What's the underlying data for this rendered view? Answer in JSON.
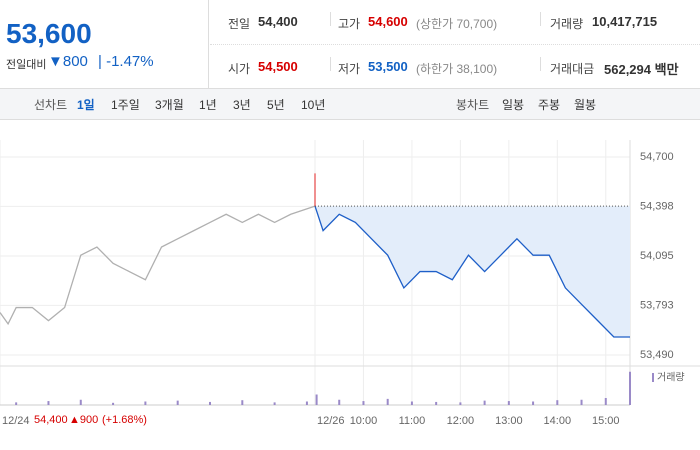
{
  "header": {
    "price": "53,600",
    "change_label": "전일대비",
    "change": "800",
    "change_pct": "-1.47%",
    "stats": [
      {
        "label": "전일",
        "value": "54,400"
      },
      {
        "label": "고가",
        "value": "54,600",
        "note": "(상한가 70,700)"
      },
      {
        "label": "거래량",
        "value": "10,417,715"
      },
      {
        "label": "시가",
        "value": "54,500"
      },
      {
        "label": "저가",
        "value": "53,500",
        "note": "(하한가 38,100)"
      },
      {
        "label": "거래대금",
        "value": "562,294 백만"
      }
    ]
  },
  "tabs": {
    "line_label": "선차트",
    "line": [
      "1일",
      "1주일",
      "3개월",
      "1년",
      "3년",
      "5년",
      "10년"
    ],
    "candle_label": "봉차트",
    "candle": [
      "일봉",
      "주봉",
      "월봉"
    ]
  },
  "chart_data": {
    "type": "line",
    "xlim": [
      0,
      780
    ],
    "ylim": [
      53490,
      54700
    ],
    "yticks": [
      {
        "value": 53490,
        "label": "53,490"
      },
      {
        "value": 53793,
        "label": "53,793"
      },
      {
        "value": 54095,
        "label": "54,095"
      },
      {
        "value": 54398,
        "label": "54,398"
      },
      {
        "value": 54700,
        "label": "54,700"
      }
    ],
    "xticks": [
      {
        "value": 0,
        "label": "12/24"
      },
      {
        "value": 390,
        "label": "12/26"
      },
      {
        "value": 450,
        "label": "10:00"
      },
      {
        "value": 510,
        "label": "11:00"
      },
      {
        "value": 570,
        "label": "12:00"
      },
      {
        "value": 630,
        "label": "13:00"
      },
      {
        "value": 690,
        "label": "14:00"
      },
      {
        "value": 750,
        "label": "15:00"
      }
    ],
    "prev_close": 54400,
    "open_high": 54600,
    "series": [
      {
        "color": "#b0b0b0",
        "x": [
          0,
          10,
          20,
          40,
          60,
          80,
          100,
          120,
          140,
          160,
          180,
          200,
          220,
          240,
          260,
          280,
          300,
          320,
          340,
          360,
          390
        ],
        "values": [
          53750,
          53680,
          53780,
          53780,
          53700,
          53780,
          54100,
          54150,
          54050,
          54000,
          53950,
          54150,
          54200,
          54250,
          54300,
          54350,
          54300,
          54350,
          54300,
          54350,
          54400
        ]
      },
      {
        "color": "#1e5fc8",
        "fill": "#e3edfa",
        "x": [
          390,
          400,
          420,
          440,
          460,
          480,
          500,
          520,
          540,
          560,
          580,
          600,
          620,
          640,
          660,
          680,
          700,
          720,
          740,
          760,
          780
        ],
        "values": [
          54400,
          54250,
          54350,
          54300,
          54200,
          54100,
          53900,
          54000,
          54000,
          53950,
          54100,
          54000,
          54100,
          54200,
          54100,
          54100,
          53900,
          53800,
          53700,
          53600,
          53600
        ]
      }
    ],
    "volume": {
      "name": "거래량",
      "color": "#9a8ac8",
      "y2lim": [
        0,
        400000
      ],
      "x": [
        20,
        60,
        100,
        140,
        180,
        220,
        260,
        300,
        340,
        380,
        392,
        420,
        450,
        480,
        510,
        540,
        570,
        600,
        630,
        660,
        690,
        720,
        750,
        780
      ],
      "values": [
        30000,
        45000,
        60000,
        25000,
        40000,
        50000,
        35000,
        55000,
        30000,
        40000,
        120000,
        60000,
        45000,
        70000,
        40000,
        35000,
        30000,
        50000,
        45000,
        40000,
        55000,
        60000,
        80000,
        380000
      ]
    },
    "annotation": {
      "date": "12/24",
      "price": "54,400",
      "change": "▲900",
      "pct": "(+1.68%)"
    }
  }
}
